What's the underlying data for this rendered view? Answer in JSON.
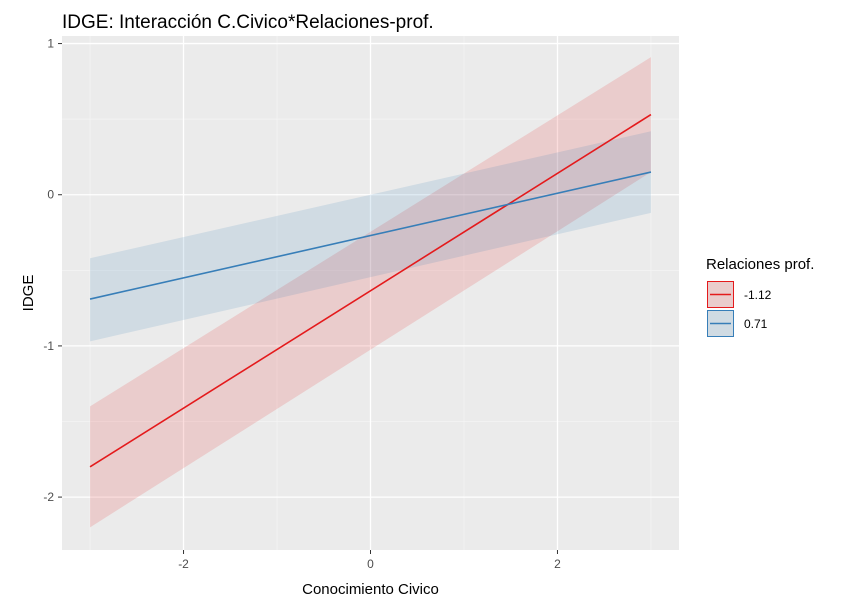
{
  "chart_data": {
    "type": "line",
    "title": "IDGE: Interacción C.Civico*Relaciones-prof.",
    "xlabel": "Conocimiento Civico",
    "ylabel": "IDGE",
    "xlim": [
      -3.3,
      3.3
    ],
    "ylim": [
      -2.35,
      1.05
    ],
    "x_ticks": [
      -2,
      0,
      2
    ],
    "x_tick_labels": [
      "-2",
      "0",
      "2"
    ],
    "y_ticks": [
      -2,
      -1,
      0,
      1
    ],
    "y_tick_labels": [
      "-2",
      "-1",
      "0",
      "1"
    ],
    "grid": true,
    "legend": {
      "title": "Relaciones prof.",
      "position": "right"
    },
    "series": [
      {
        "name": "-1.12",
        "color": "#e41a1c",
        "x": [
          -3,
          3
        ],
        "y": [
          -1.8,
          0.53
        ],
        "ci_lower": [
          -2.2,
          0.15
        ],
        "ci_upper": [
          -1.4,
          0.91
        ]
      },
      {
        "name": "0.71",
        "color": "#377eb8",
        "x": [
          -3,
          3
        ],
        "y": [
          -0.69,
          0.15
        ],
        "ci_lower": [
          -0.97,
          -0.12
        ],
        "ci_upper": [
          -0.42,
          0.42
        ]
      }
    ]
  }
}
